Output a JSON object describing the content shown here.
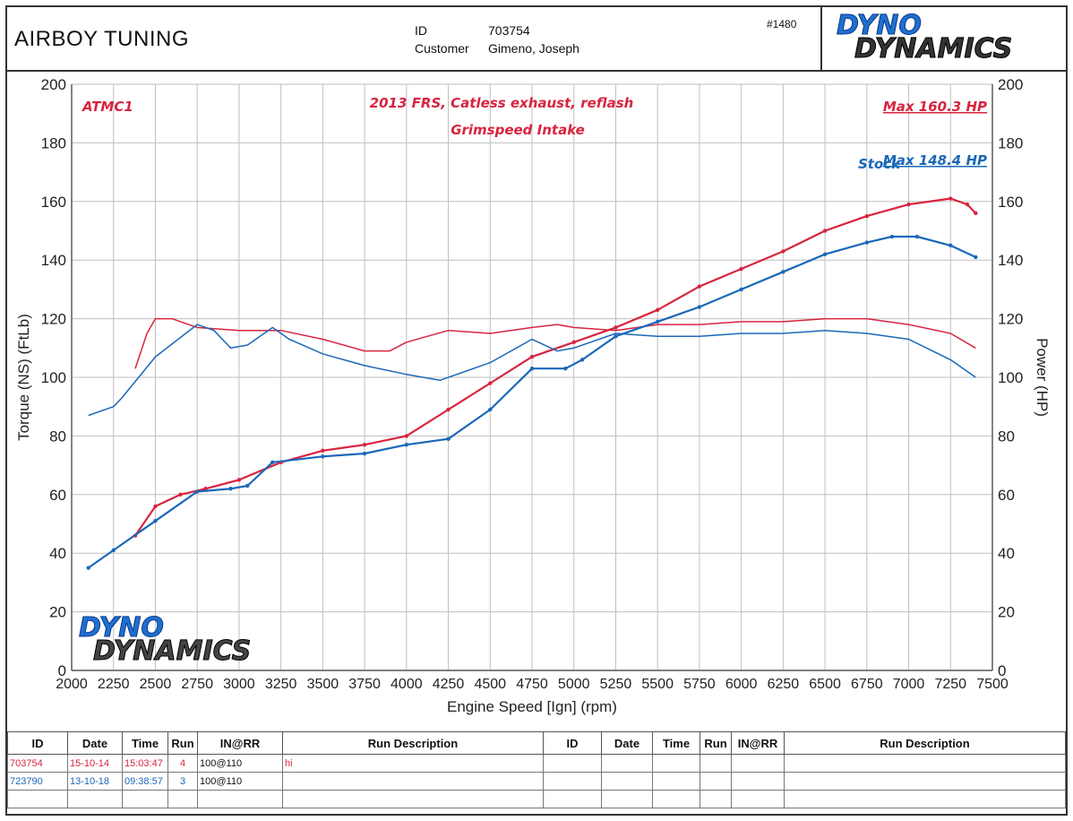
{
  "header": {
    "shop_name": "AIRBOY TUNING",
    "id_label": "ID",
    "id_value": "703754",
    "customer_label": "Customer",
    "customer_value": "Gimeno, Joseph",
    "job_number": "#1480",
    "logo_top": "DYNO",
    "logo_bottom": "DYNAMICS"
  },
  "colors": {
    "run1": "#d8243f",
    "run2": "#1a68b8",
    "grid": "#bfbfbf"
  },
  "chart_data": {
    "type": "line",
    "xlabel": "Engine Speed [Ign] (rpm)",
    "ylabel_left": "Torque (NS) (FtLb)",
    "ylabel_right": "Power (HP)",
    "xlim": [
      2000,
      7500
    ],
    "ylim": [
      0,
      200
    ],
    "x_ticks": [
      2000,
      2250,
      2500,
      2750,
      3000,
      3250,
      3500,
      3750,
      4000,
      4250,
      4500,
      4750,
      5000,
      5250,
      5500,
      5750,
      6000,
      6250,
      6500,
      6750,
      7000,
      7250,
      7500
    ],
    "y_ticks": [
      0,
      20,
      40,
      60,
      80,
      100,
      120,
      140,
      160,
      180,
      200
    ],
    "grid": true,
    "annotations": {
      "run_tag": "ATMC1",
      "desc_line1": "2013 FRS, Catless exhaust, reflash",
      "desc_line2": "Grimspeed Intake",
      "max_red": "Max 160.3 HP",
      "stock_label": "Stock",
      "max_blue": "Max 148.4 HP"
    },
    "series": [
      {
        "name": "703754 power",
        "color": "#d8243f",
        "kind": "power",
        "x": [
          2380,
          2500,
          2650,
          2800,
          3000,
          3250,
          3500,
          3750,
          4000,
          4250,
          4500,
          4750,
          5000,
          5250,
          5500,
          5750,
          6000,
          6250,
          6500,
          6750,
          7000,
          7250,
          7350,
          7400
        ],
        "y": [
          46,
          56,
          60,
          62,
          65,
          71,
          75,
          77,
          80,
          89,
          98,
          107,
          112,
          117,
          123,
          131,
          137,
          143,
          150,
          155,
          159,
          161,
          159,
          156
        ]
      },
      {
        "name": "703754 torque",
        "color": "#d8243f",
        "kind": "torque",
        "x": [
          2380,
          2450,
          2500,
          2600,
          2750,
          3000,
          3250,
          3500,
          3750,
          3900,
          4000,
          4250,
          4500,
          4750,
          4900,
          5000,
          5250,
          5500,
          5750,
          6000,
          6250,
          6500,
          6750,
          7000,
          7250,
          7400
        ],
        "y": [
          103,
          115,
          120,
          120,
          117,
          116,
          116,
          113,
          109,
          109,
          112,
          116,
          115,
          117,
          118,
          117,
          116,
          118,
          118,
          119,
          119,
          120,
          120,
          118,
          115,
          110
        ]
      },
      {
        "name": "723790 power",
        "color": "#1a68b8",
        "kind": "power",
        "x": [
          2100,
          2250,
          2500,
          2750,
          2950,
          3050,
          3200,
          3500,
          3750,
          4000,
          4250,
          4500,
          4750,
          4950,
          5050,
          5250,
          5500,
          5750,
          6000,
          6250,
          6500,
          6750,
          6900,
          7050,
          7250,
          7400
        ],
        "y": [
          35,
          41,
          51,
          61,
          62,
          63,
          71,
          73,
          74,
          77,
          79,
          89,
          103,
          103,
          106,
          114,
          119,
          124,
          130,
          136,
          142,
          146,
          148,
          148,
          145,
          141
        ]
      },
      {
        "name": "723790 torque",
        "color": "#1a68b8",
        "kind": "torque",
        "x": [
          2100,
          2250,
          2300,
          2500,
          2750,
          2850,
          2950,
          3050,
          3200,
          3300,
          3500,
          3750,
          4000,
          4200,
          4500,
          4750,
          4900,
          5000,
          5250,
          5500,
          5750,
          6000,
          6250,
          6500,
          6750,
          7000,
          7250,
          7400
        ],
        "y": [
          87,
          90,
          93,
          107,
          118,
          116,
          110,
          111,
          117,
          113,
          108,
          104,
          101,
          99,
          105,
          113,
          109,
          110,
          115,
          114,
          114,
          115,
          115,
          116,
          115,
          113,
          106,
          100
        ]
      }
    ]
  },
  "run_table": {
    "headers_left": [
      "ID",
      "Date",
      "Time",
      "Run",
      "IN@RR",
      "Run Description"
    ],
    "headers_right": [
      "ID",
      "Date",
      "Time",
      "Run",
      "IN@RR",
      "Run Description"
    ],
    "rows": [
      {
        "id": "703754",
        "date": "15-10-14",
        "time": "15:03:47",
        "run": "4",
        "inrr": "100@110",
        "desc": "hi",
        "color": "#d8243f"
      },
      {
        "id": "723790",
        "date": "13-10-18",
        "time": "09:38:57",
        "run": "3",
        "inrr": "100@110",
        "desc": "",
        "color": "#1a68b8"
      }
    ]
  }
}
